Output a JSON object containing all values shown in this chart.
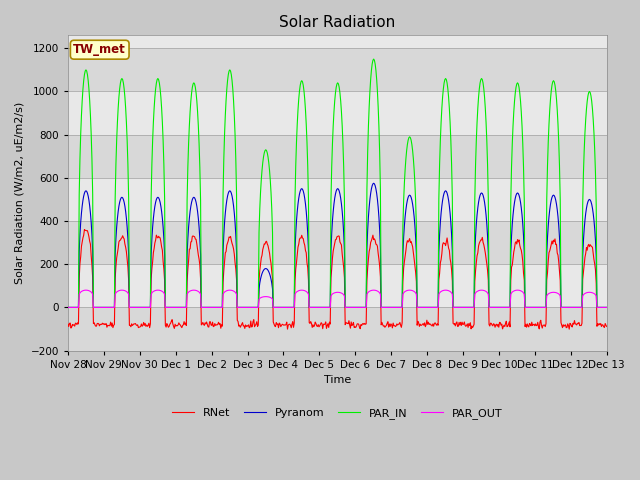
{
  "title": "Solar Radiation",
  "xlabel": "Time",
  "ylabel": "Solar Radiation (W/m2, uE/m2/s)",
  "ylim": [
    -200,
    1260
  ],
  "yticks": [
    -200,
    0,
    200,
    400,
    600,
    800,
    1000,
    1200
  ],
  "series_colors": {
    "RNet": "#ff0000",
    "Pyranom": "#0000cc",
    "PAR_IN": "#00ee00",
    "PAR_OUT": "#ff00ff"
  },
  "annotation_text": "TW_met",
  "annotation_color": "#880000",
  "annotation_bg": "#ffffcc",
  "annotation_border": "#aa8800",
  "fig_bg_color": "#c8c8c8",
  "band_colors": [
    "#d8d8d8",
    "#e8e8e8"
  ],
  "grid_line_color": "#bbbbbb",
  "x_tick_labels": [
    "Nov 28",
    "Nov 29",
    "Nov 30",
    "Dec 1",
    "Dec 2",
    "Dec 3",
    "Dec 4",
    "Dec 5",
    "Dec 6",
    "Dec 7",
    "Dec 8",
    "Dec 9",
    "Dec 10",
    "Dec 11",
    "Dec 12",
    "Dec 13"
  ],
  "par_in_peaks": [
    1100,
    1060,
    1060,
    1040,
    1100,
    730,
    1050,
    1040,
    1150,
    790,
    1060,
    1060,
    1040,
    1050,
    1000
  ],
  "pyranom_peaks": [
    540,
    510,
    510,
    510,
    540,
    180,
    550,
    550,
    575,
    520,
    540,
    530,
    530,
    520,
    500
  ],
  "rnet_peaks": [
    360,
    330,
    330,
    330,
    320,
    300,
    320,
    330,
    330,
    310,
    310,
    310,
    310,
    310,
    300
  ],
  "par_out_peaks": [
    80,
    80,
    80,
    80,
    80,
    50,
    80,
    70,
    80,
    80,
    80,
    80,
    80,
    70,
    70
  ],
  "night_rnet": -80,
  "n_days": 15,
  "points_per_day": 48,
  "title_fontsize": 11,
  "label_fontsize": 8,
  "tick_fontsize": 7.5
}
